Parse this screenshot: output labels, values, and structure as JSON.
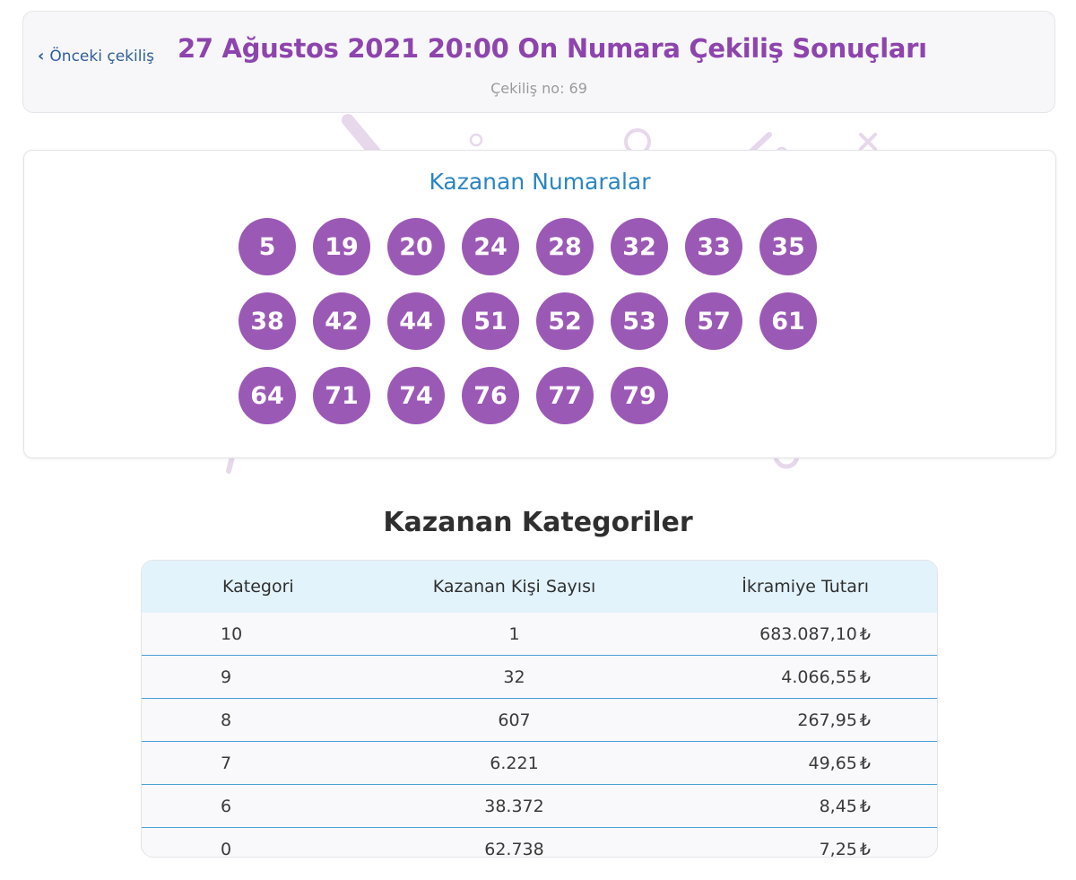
{
  "header": {
    "prev_label": "Önceki çekiliş",
    "title": "27 Ağustos 2021 20:00 On Numara Çekiliş Sonuçları",
    "draw_no": "Çekiliş no: 69"
  },
  "numbers": {
    "title": "Kazanan Numaralar",
    "balls": [
      "5",
      "19",
      "20",
      "24",
      "28",
      "32",
      "33",
      "35",
      "38",
      "42",
      "44",
      "51",
      "52",
      "53",
      "57",
      "61",
      "64",
      "71",
      "74",
      "76",
      "77",
      "79"
    ]
  },
  "categories": {
    "title": "Kazanan Kategoriler",
    "headers": [
      "Kategori",
      "Kazanan Kişi Sayısı",
      "İkramiye Tutarı"
    ],
    "currency": "₺",
    "rows": [
      {
        "cat": "10",
        "winners": "1",
        "prize": "683.087,10"
      },
      {
        "cat": "9",
        "winners": "32",
        "prize": "4.066,55"
      },
      {
        "cat": "8",
        "winners": "607",
        "prize": "267,95"
      },
      {
        "cat": "7",
        "winners": "6.221",
        "prize": "49,65"
      },
      {
        "cat": "6",
        "winners": "38.372",
        "prize": "8,45"
      },
      {
        "cat": "0",
        "winners": "62.738",
        "prize": "7,25"
      }
    ]
  },
  "colors": {
    "ball": "#9b59b6",
    "title_purple": "#8e44ad",
    "accent_blue": "#2a86c2",
    "table_header_bg": "#e3f3fc",
    "row_divider": "#4aa0d3"
  }
}
